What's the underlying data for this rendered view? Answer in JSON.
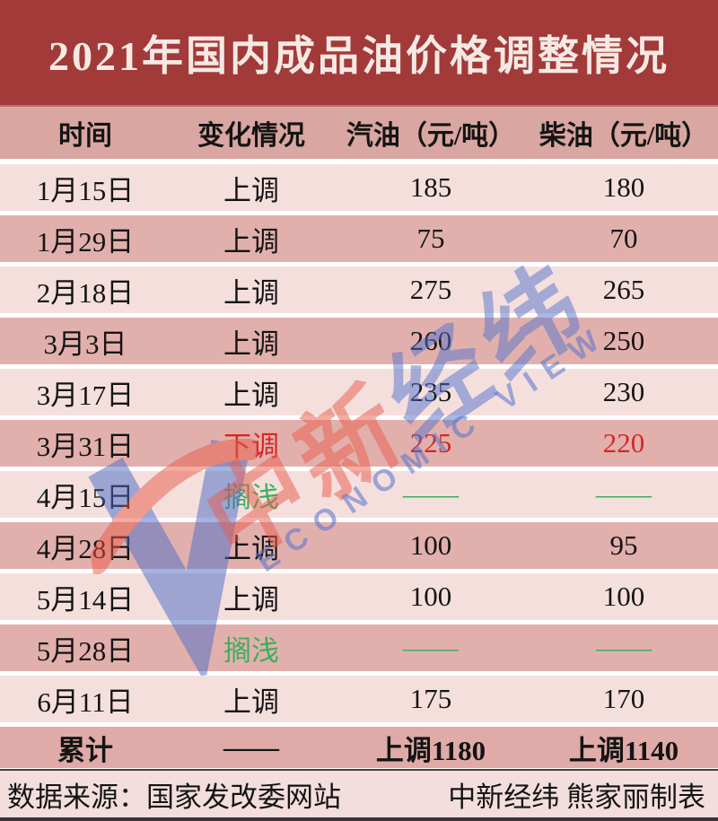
{
  "title": "2021年国内成品油价格调整情况",
  "colors": {
    "title_bg": "#a23a39",
    "title_fg": "#f6e9e3",
    "header_bg": "#d9a6a2",
    "row_light": "#f5dfdd",
    "row_dark": "#e2b0ac",
    "total_bg": "#dfaaa7",
    "footer_bg": "#f3dedd",
    "text": "#141414",
    "red": "#d42725",
    "green": "#3cae5e",
    "wm_red": "#e95c4b",
    "wm_blue": "#5473cd"
  },
  "table": {
    "headers": [
      "时间",
      "变化情况",
      "汽油（元/吨）",
      "柴油（元/吨）"
    ],
    "rows": [
      {
        "date": "1月15日",
        "change": "上调",
        "gas": "185",
        "diesel": "180",
        "kind": "up"
      },
      {
        "date": "1月29日",
        "change": "上调",
        "gas": "75",
        "diesel": "70",
        "kind": "up"
      },
      {
        "date": "2月18日",
        "change": "上调",
        "gas": "275",
        "diesel": "265",
        "kind": "up"
      },
      {
        "date": "3月3日",
        "change": "上调",
        "gas": "260",
        "diesel": "250",
        "kind": "up"
      },
      {
        "date": "3月17日",
        "change": "上调",
        "gas": "235",
        "diesel": "230",
        "kind": "up"
      },
      {
        "date": "3月31日",
        "change": "下调",
        "gas": "225",
        "diesel": "220",
        "kind": "down"
      },
      {
        "date": "4月15日",
        "change": "搁浅",
        "gas": "——",
        "diesel": "——",
        "kind": "hold"
      },
      {
        "date": "4月28日",
        "change": "上调",
        "gas": "100",
        "diesel": "95",
        "kind": "up"
      },
      {
        "date": "5月14日",
        "change": "上调",
        "gas": "100",
        "diesel": "100",
        "kind": "up"
      },
      {
        "date": "5月28日",
        "change": "搁浅",
        "gas": "——",
        "diesel": "——",
        "kind": "hold"
      },
      {
        "date": "6月11日",
        "change": "上调",
        "gas": "175",
        "diesel": "170",
        "kind": "up"
      },
      {
        "date": "累计",
        "change": "——",
        "gas": "上调1180",
        "diesel": "上调1140",
        "kind": "total"
      }
    ]
  },
  "footer": {
    "source": "数据来源：国家发改委网站",
    "credit": "中新经纬  熊家丽制表"
  },
  "watermark": {
    "cn_red": "中新",
    "cn_blue": "经纬",
    "en": "ECONOMIC VIEW"
  },
  "chart_data": {
    "type": "table",
    "title": "2021年国内成品油价格调整情况",
    "columns": [
      "时间",
      "变化情况",
      "汽油（元/吨）",
      "柴油（元/吨）"
    ],
    "rows": [
      [
        "1月15日",
        "上调",
        185,
        180
      ],
      [
        "1月29日",
        "上调",
        75,
        70
      ],
      [
        "2月18日",
        "上调",
        275,
        265
      ],
      [
        "3月3日",
        "上调",
        260,
        250
      ],
      [
        "3月17日",
        "上调",
        235,
        230
      ],
      [
        "3月31日",
        "下调",
        225,
        220
      ],
      [
        "4月15日",
        "搁浅",
        null,
        null
      ],
      [
        "4月28日",
        "上调",
        100,
        95
      ],
      [
        "5月14日",
        "上调",
        100,
        100
      ],
      [
        "5月28日",
        "搁浅",
        null,
        null
      ],
      [
        "6月11日",
        "上调",
        175,
        170
      ],
      [
        "累计",
        "——",
        "上调1180",
        "上调1140"
      ]
    ],
    "legend_note": "上调=black, 下调=red, 搁浅=green dashes",
    "source": "数据来源：国家发改委网站",
    "credit": "中新经纬 熊家丽制表"
  }
}
